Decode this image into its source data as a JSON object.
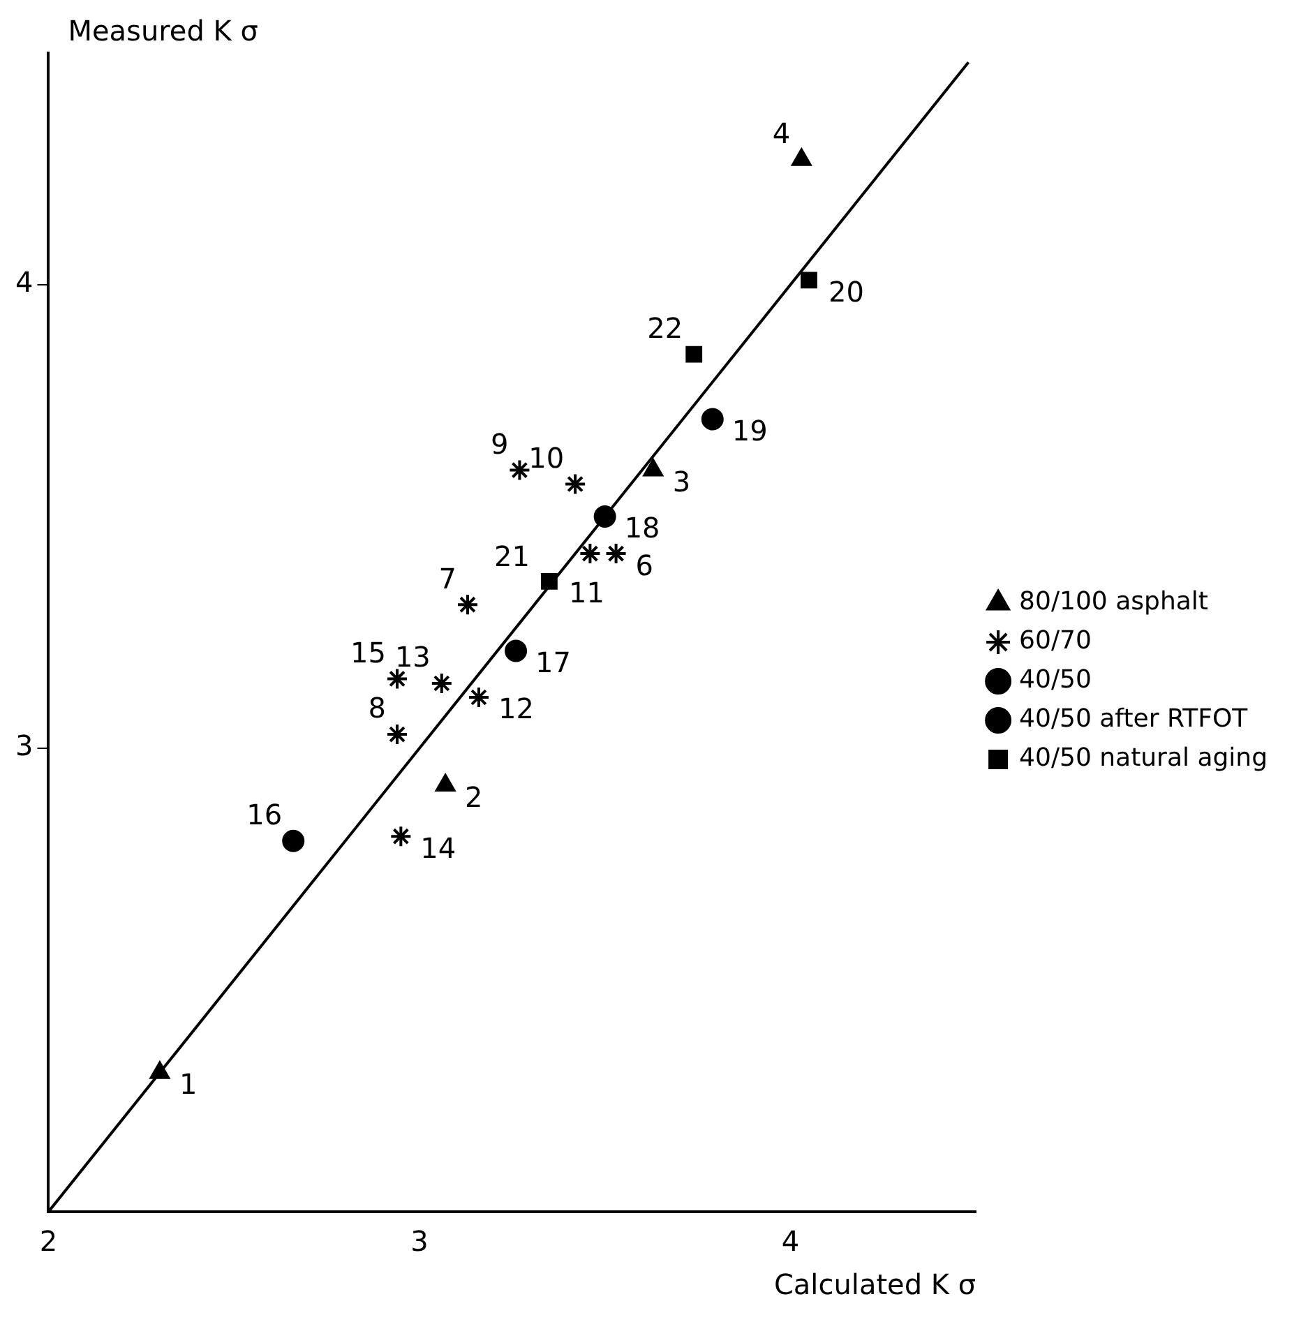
{
  "chart_data": {
    "type": "scatter",
    "xlabel": "Calculated K σ",
    "ylabel": "Measured K σ",
    "xlim": [
      2,
      4.5
    ],
    "ylim": [
      2,
      4.5
    ],
    "xticks": [
      2,
      3,
      4
    ],
    "yticks": [
      3,
      4
    ],
    "grid": false,
    "legend": "right",
    "series": [
      {
        "name": "80/100 asphalt",
        "color": "#000000",
        "marker": "triangle",
        "x": [
          2.3,
          3.07,
          3.63,
          4.03
        ],
        "values": [
          2.3,
          2.92,
          3.6,
          4.27
        ]
      },
      {
        "name": "60/70",
        "color": "#000000",
        "marker": "cross",
        "x": [
          3.27,
          3.42,
          3.53,
          3.46,
          3.13,
          3.06,
          2.94,
          3.16,
          2.94,
          2.95
        ],
        "values": [
          3.6,
          3.57,
          3.42,
          3.42,
          3.31,
          3.14,
          3.15,
          3.11,
          3.03,
          2.81
        ]
      },
      {
        "name": "40/50",
        "color": "#000000",
        "marker": "circle",
        "x": [
          2.66
        ],
        "values": [
          2.8
        ]
      },
      {
        "name": "40/50 after RTFOT",
        "color": "#000000",
        "marker": "circle",
        "x": [
          3.26,
          3.5,
          3.79
        ],
        "values": [
          3.21,
          3.5,
          3.71
        ]
      },
      {
        "name": "40/50 natural aging",
        "color": "#000000",
        "marker": "square",
        "x": [
          4.05,
          3.74,
          3.35
        ],
        "values": [
          4.01,
          3.85,
          3.36
        ]
      },
      {
        "type": "line",
        "color": "#000000",
        "marker": "none",
        "line_style": "solid",
        "x": [
          2,
          4.48
        ],
        "values": [
          2,
          4.48
        ]
      }
    ],
    "annotations": [
      {
        "text": "1",
        "x": 2.3,
        "y": 2.3
      },
      {
        "text": "2",
        "x": 3.07,
        "y": 2.92
      },
      {
        "text": "3",
        "x": 3.63,
        "y": 3.6
      },
      {
        "text": "4",
        "x": 4.03,
        "y": 4.27
      },
      {
        "text": "6",
        "x": 3.53,
        "y": 3.42
      },
      {
        "text": "7",
        "x": 3.13,
        "y": 3.31
      },
      {
        "text": "8",
        "x": 2.94,
        "y": 3.03
      },
      {
        "text": "9",
        "x": 3.27,
        "y": 3.6
      },
      {
        "text": "10",
        "x": 3.42,
        "y": 3.57
      },
      {
        "text": "11",
        "x": 3.35,
        "y": 3.36
      },
      {
        "text": "12",
        "x": 3.16,
        "y": 3.11
      },
      {
        "text": "13",
        "x": 3.06,
        "y": 3.14
      },
      {
        "text": "14",
        "x": 2.95,
        "y": 2.81
      },
      {
        "text": "15",
        "x": 2.94,
        "y": 3.15
      },
      {
        "text": "16",
        "x": 2.66,
        "y": 2.8
      },
      {
        "text": "17",
        "x": 3.26,
        "y": 3.21
      },
      {
        "text": "18",
        "x": 3.5,
        "y": 3.5
      },
      {
        "text": "19",
        "x": 3.79,
        "y": 3.71
      },
      {
        "text": "20",
        "x": 4.05,
        "y": 4.01
      },
      {
        "text": "21",
        "x": 3.35,
        "y": 3.36
      },
      {
        "text": "22",
        "x": 3.74,
        "y": 3.85
      }
    ]
  }
}
